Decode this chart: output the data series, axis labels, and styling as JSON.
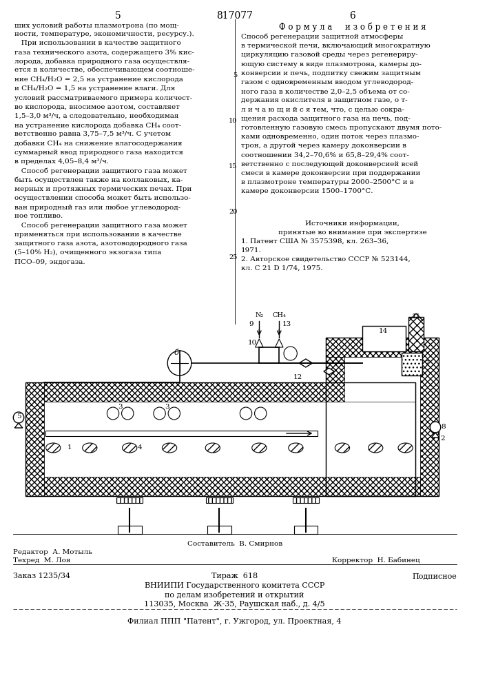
{
  "bg_color": "#ffffff",
  "left_col_page_num": "5",
  "center_patent_num": "817077",
  "right_col_page_num": "6",
  "formula_header": "Ф о р м у л а     и з о б р е т е н и я",
  "left_col_text": [
    "ших условий работы плазмотрона (по мощ-",
    "ности, температуре, экономичности, ресурсу.).",
    "   При использовании в качестве защитного",
    "газа технического азота, содержащего 3% кис-",
    "лорода, добавка природного газа осуществля-",
    "ется в количестве, обеспечивающем соотноше-",
    "ние CH₄/H₂O = 2,5 на устранение кислорода",
    "и CH₄/H₂O = 1,5 на устранение влаги. Для",
    "условий рассматриваемого примера количест-",
    "во кислорода, вносимое азотом, составляет",
    "1,5–3,0 м³/ч, а следовательно, необходимая",
    "на устранение кислорода добавка CH₄ соот-",
    "ветственно равна 3,75–7,5 м³/ч. С учетом",
    "добавки CH₄ на снижение влагосодержания",
    "суммарный ввод природного газа находится",
    "в пределах 4,05–8,4 м³/ч.",
    "   Способ регенерации защитного газа может",
    "быть осуществлен также на коллаковых, ка-",
    "мерных и протяжных термических печах. При",
    "осуществлении способа может быть использо-",
    "ван природный газ или любое углеводород-",
    "ное топливо.",
    "   Способ регенерации защитного газа может",
    "применяться при использовании в качестве",
    "защитного газа азота, азотоводородного газа",
    "(5–10% H₂), очищенного экзогаза типа",
    "ПСО–09, эндогаза."
  ],
  "right_col_intro": [
    "Способ регенерации защитной атмосферы",
    "в термической печи, включающий многократную"
  ],
  "right_col_text": [
    "циркуляцию газовой среды через регенериру-",
    "ющую систему в виде плазмотрона, камеры до-",
    "конверсии и печь, подпитку свежим защитным",
    "газом с одновременным вводом углеводород-",
    "ного газа в количестве 2,0–2,5 объема от со-",
    "держания окислителя в защитном газе, о т-",
    "л и ч а ю щ и й с я тем, что, с целью сокра-",
    "щения расхода защитного газа на печь, под-",
    "готовленную газовую смесь пропускают двумя пото-",
    "ками одновременно, один поток через плазмо-",
    "трон, а другой через камеру доконверсии в",
    "соотношении 34,2–70,6% и 65,8–29,4% соот-",
    "ветственно с последующей доконверсией всей",
    "смеси в камере доконверсии при поддержании",
    "в плазмотроне температуры 2000–2500°С и в",
    "камере доконверсии 1500–1700°С."
  ],
  "line_numbers_right": [
    "5",
    "10",
    "15",
    "20",
    "25"
  ],
  "sources_header": "Источники информации,",
  "sources_subheader": "принятые во внимание при экспертизе",
  "source1": "1. Патент США № 3575398, кл. 263–36,",
  "source1b": "1971.",
  "source2": "2. Авторское свидетельство СССР № 523144,",
  "source2b": "кл. С 21 D 1/74, 1975.",
  "editor_line": "Редактор  А. Мотыль",
  "compiler_line": "Составитель  В. Смирнов",
  "tech_line": "Техред  М. Лоя",
  "corrector_line": "Корректор  Н. Бабинец",
  "order_line": "Заказ 1235/34",
  "edition_line": "Тираж  618",
  "signed_line": "Подписное",
  "org_line1": "ВНИИПИ Государственного комитета СССР",
  "org_line2": "по делам изобретений и открытий",
  "org_line3": "113035, Москва  Ж-35, Раушская наб., д. 4/5",
  "branch_line": "Филиал ППП \"Патент\", г. Ужгород, ул. Проектная, 4"
}
